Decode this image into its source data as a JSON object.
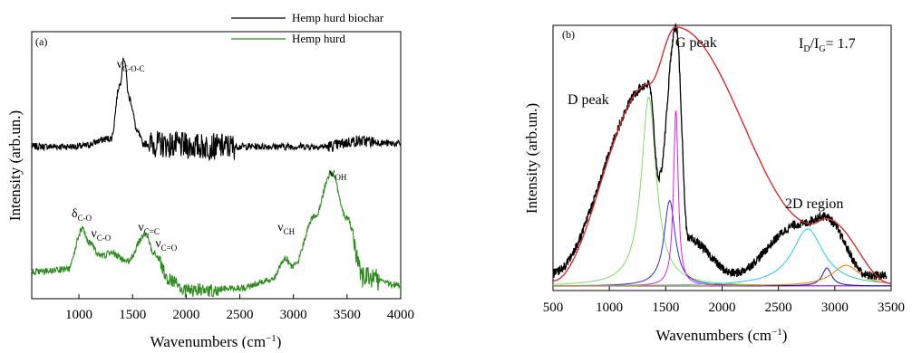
{
  "chart_data": [
    {
      "panel_label": "(a)",
      "type": "line",
      "xlabel": "Wavenumbers (cm",
      "xlabel_sup": "−1",
      "xlabel_close": ")",
      "ylabel": "Intensity (arb.un.)",
      "xlim": [
        560,
        4000
      ],
      "x_ticks": [
        1000,
        1500,
        2000,
        2500,
        3000,
        3500,
        4000
      ],
      "y_ticks_labeled": false,
      "legend_position": "top-right",
      "series": [
        {
          "name": "Hemp hurd biochar",
          "color": "#000000",
          "features": [
            {
              "x": 560,
              "y": 0.57
            },
            {
              "x": 1000,
              "y": 0.57
            },
            {
              "x": 1300,
              "y": 0.6
            },
            {
              "x": 1380,
              "y": 0.8
            },
            {
              "x": 1420,
              "y": 0.9
            },
            {
              "x": 1470,
              "y": 0.75
            },
            {
              "x": 1550,
              "y": 0.62
            },
            {
              "x": 1600,
              "y": 0.58
            },
            {
              "x": 2200,
              "y": 0.57
            },
            {
              "x": 2700,
              "y": 0.57
            },
            {
              "x": 3300,
              "y": 0.57
            },
            {
              "x": 3600,
              "y": 0.59
            },
            {
              "x": 4000,
              "y": 0.58
            }
          ]
        },
        {
          "name": "Hemp hurd",
          "color": "#2e8b1f",
          "features": [
            {
              "x": 560,
              "y": 0.1
            },
            {
              "x": 900,
              "y": 0.11
            },
            {
              "x": 1030,
              "y": 0.26
            },
            {
              "x": 1100,
              "y": 0.21
            },
            {
              "x": 1200,
              "y": 0.16
            },
            {
              "x": 1300,
              "y": 0.17
            },
            {
              "x": 1450,
              "y": 0.14
            },
            {
              "x": 1620,
              "y": 0.24
            },
            {
              "x": 1700,
              "y": 0.17
            },
            {
              "x": 1850,
              "y": 0.07
            },
            {
              "x": 2000,
              "y": 0.03
            },
            {
              "x": 2500,
              "y": 0.04
            },
            {
              "x": 2800,
              "y": 0.07
            },
            {
              "x": 2920,
              "y": 0.15
            },
            {
              "x": 3000,
              "y": 0.12
            },
            {
              "x": 3200,
              "y": 0.31
            },
            {
              "x": 3350,
              "y": 0.47
            },
            {
              "x": 3500,
              "y": 0.3
            },
            {
              "x": 3650,
              "y": 0.08
            },
            {
              "x": 4000,
              "y": 0.05
            }
          ]
        }
      ],
      "annotations": [
        {
          "base": "ν",
          "sub": "C-O-C",
          "x": 1420
        },
        {
          "base": "δ",
          "sub": "C-O",
          "x": 1000
        },
        {
          "base": "ν",
          "sub": "C-O",
          "x": 1180
        },
        {
          "base": "ν",
          "sub": "C=C",
          "x": 1620
        },
        {
          "base": "ν",
          "sub": "C=O",
          "x": 1780
        },
        {
          "base": "ν",
          "sub": "CH",
          "x": 2920
        },
        {
          "base": "ν",
          "sub": "OH",
          "x": 3400
        }
      ]
    },
    {
      "panel_label": "(b)",
      "type": "line",
      "xlabel": "Wavenumbers (cm",
      "xlabel_sup": "−1",
      "xlabel_close": ")",
      "ylabel": "Intensity (arb.un.)",
      "xlim": [
        500,
        3500
      ],
      "x_ticks": [
        500,
        1000,
        1500,
        2000,
        2500,
        3000,
        3500
      ],
      "y_ticks_labeled": false,
      "ratio_text": {
        "I": "I",
        "D": "D",
        "slash": "/I",
        "G": "G",
        "value": "= 1.7"
      },
      "peak_labels": [
        {
          "text": "D peak",
          "x": 1350
        },
        {
          "text": "G peak",
          "x": 1600
        },
        {
          "text": "2D region",
          "x": 2900
        }
      ],
      "series": [
        {
          "name": "",
          "color": "#000000",
          "role": "measured",
          "features": [
            {
              "x": 500,
              "y": 0.05
            },
            {
              "x": 1350,
              "y": 0.78
            },
            {
              "x": 1440,
              "y": 0.42
            },
            {
              "x": 1590,
              "y": 1.0
            },
            {
              "x": 1700,
              "y": 0.18
            },
            {
              "x": 2100,
              "y": 0.05
            },
            {
              "x": 2700,
              "y": 0.24
            },
            {
              "x": 2900,
              "y": 0.27
            },
            {
              "x": 3300,
              "y": 0.04
            }
          ]
        },
        {
          "name": "",
          "color": "#d12e2e",
          "role": "cumulative fit",
          "features": [
            {
              "x": 500,
              "y": 0.02
            },
            {
              "x": 1350,
              "y": 0.78
            },
            {
              "x": 1590,
              "y": 1.0
            },
            {
              "x": 2800,
              "y": 0.24
            },
            {
              "x": 2920,
              "y": 0.26
            },
            {
              "x": 3500,
              "y": 0.01
            }
          ]
        },
        {
          "name": "",
          "color": "#7fd86a",
          "role": "D band",
          "center": 1350,
          "height": 0.73,
          "hwhm": 80
        },
        {
          "name": "",
          "color": "#2a2ad6",
          "role": "D'' band",
          "center": 1535,
          "height": 0.33,
          "hwhm": 60
        },
        {
          "name": "",
          "color": "#e020e0",
          "role": "G band",
          "center": 1590,
          "height": 0.68,
          "hwhm": 25
        },
        {
          "name": "",
          "color": "#26c7e0",
          "role": "2D band 1",
          "center": 2760,
          "height": 0.22,
          "hwhm": 170
        },
        {
          "name": "",
          "color": "#1010a0",
          "role": "2D band 2",
          "center": 2930,
          "height": 0.07,
          "hwhm": 50
        },
        {
          "name": "",
          "color": "#f07a00",
          "role": "2D band 3",
          "center": 3100,
          "height": 0.08,
          "hwhm": 150
        }
      ]
    }
  ]
}
